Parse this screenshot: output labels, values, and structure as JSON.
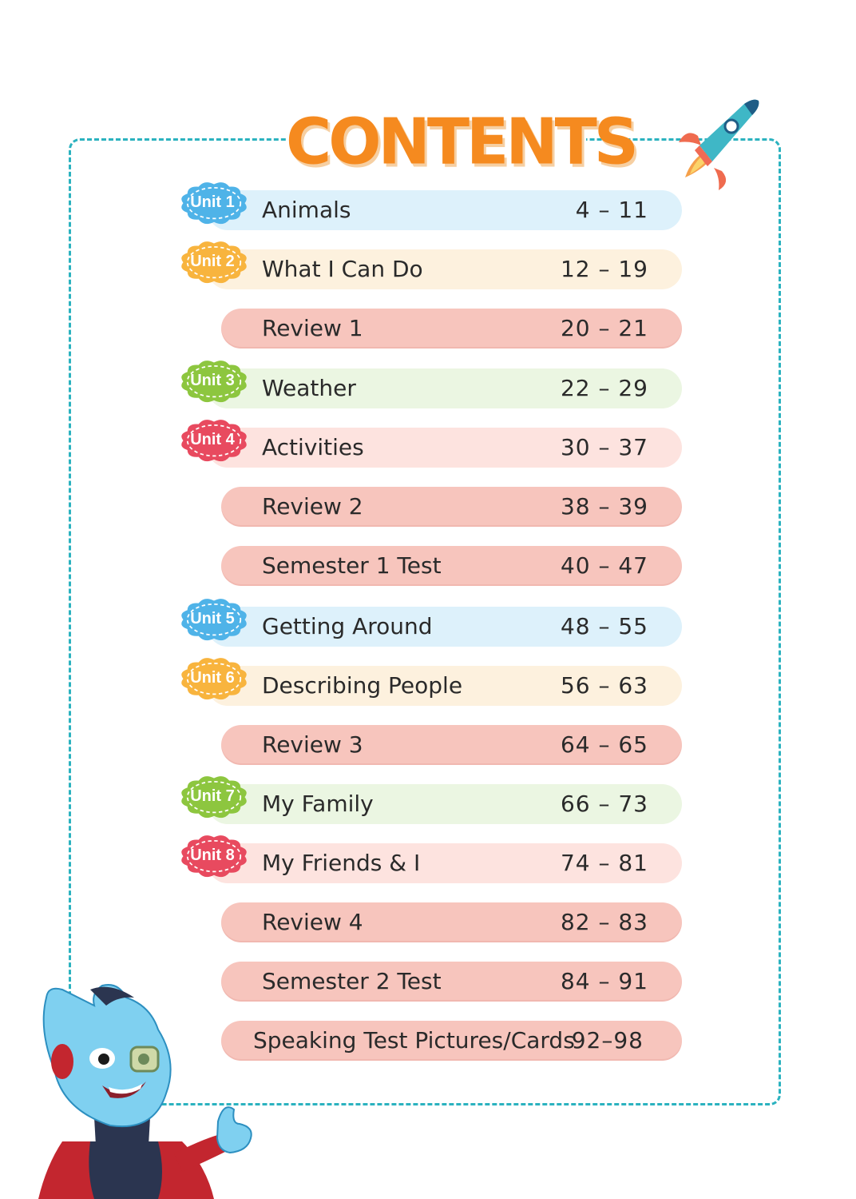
{
  "title": "CONTENTS",
  "colors": {
    "frame": "#2bb2bf",
    "title": "#f58a1f",
    "blue_badge": "#4fb3e8",
    "blue_row": "#ddf1fb",
    "orange_badge": "#f8b43e",
    "orange_row": "#fdf1de",
    "green_badge": "#8dc63f",
    "green_row": "#ebf6e2",
    "red_badge": "#e84a5f",
    "red_row": "#fde3df",
    "review_row": "#f7c5bd"
  },
  "icons": [
    "rocket-icon",
    "alien-mascot-icon"
  ],
  "entries": [
    {
      "unit": "Unit 1",
      "title": "Animals",
      "pages": "4 – 11"
    },
    {
      "unit": "Unit 2",
      "title": "What I Can Do",
      "pages": "12 – 19"
    },
    {
      "title": "Review 1",
      "pages": "20 – 21"
    },
    {
      "unit": "Unit 3",
      "title": "Weather",
      "pages": "22 – 29"
    },
    {
      "unit": "Unit 4",
      "title": "Activities",
      "pages": "30 – 37"
    },
    {
      "title": "Review 2",
      "pages": "38 – 39"
    },
    {
      "title": "Semester 1 Test",
      "pages": "40 – 47"
    },
    {
      "unit": "Unit 5",
      "title": "Getting Around",
      "pages": "48 – 55"
    },
    {
      "unit": "Unit 6",
      "title": "Describing People",
      "pages": "56 – 63"
    },
    {
      "title": "Review 3",
      "pages": "64 – 65"
    },
    {
      "unit": "Unit 7",
      "title": "My Family",
      "pages": "66 – 73"
    },
    {
      "unit": "Unit 8",
      "title": "My Friends & I",
      "pages": "74 – 81"
    },
    {
      "title": "Review 4",
      "pages": "82 – 83"
    },
    {
      "title": "Semester 2 Test",
      "pages": "84 – 91"
    },
    {
      "title": "Speaking Test Pictures/Cards",
      "pages": "92–98"
    }
  ]
}
